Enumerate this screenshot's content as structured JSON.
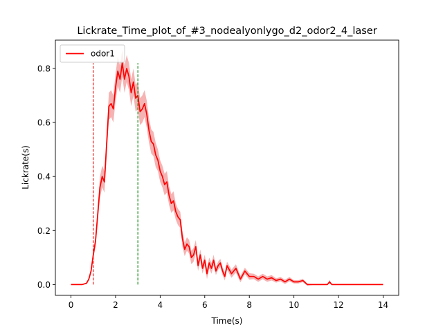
{
  "chart_data": {
    "type": "line",
    "title": "Lickrate_Time_plot_of_#3_nodealyonlygo_d2_odor2_4_laser",
    "xlabel": "Time(s)",
    "ylabel": "Lickrate(s)",
    "xlim": [
      -0.7,
      14.7
    ],
    "ylim": [
      -0.04,
      0.905
    ],
    "xticks": [
      0,
      2,
      4,
      6,
      8,
      10,
      12,
      14
    ],
    "yticks": [
      0.0,
      0.2,
      0.4,
      0.6,
      0.8
    ],
    "xtick_labels": [
      "0",
      "2",
      "4",
      "6",
      "8",
      "10",
      "12",
      "14"
    ],
    "ytick_labels": [
      "0.0",
      "0.2",
      "0.4",
      "0.6",
      "0.8"
    ],
    "grid": false,
    "legend": {
      "placement": "top-left",
      "entries": [
        "odor1"
      ]
    },
    "colors": {
      "line": "#ff0000",
      "band": "#f08080",
      "onset": "#ff0000",
      "offset": "#008000"
    },
    "vlines": [
      {
        "x": 1.0,
        "ymin": 0.0,
        "ymax": 0.82,
        "color": "#ff0000",
        "style": "dashed"
      },
      {
        "x": 3.0,
        "ymin": 0.0,
        "ymax": 0.82,
        "color": "#008000",
        "style": "dashed"
      }
    ],
    "series": [
      {
        "name": "odor1",
        "x": [
          0,
          0.5,
          0.7,
          0.8,
          0.9,
          1.0,
          1.1,
          1.2,
          1.3,
          1.4,
          1.5,
          1.6,
          1.7,
          1.8,
          1.9,
          2.0,
          2.1,
          2.2,
          2.3,
          2.4,
          2.5,
          2.6,
          2.7,
          2.8,
          2.9,
          3.0,
          3.1,
          3.2,
          3.3,
          3.4,
          3.5,
          3.6,
          3.7,
          3.8,
          3.9,
          4.0,
          4.1,
          4.2,
          4.3,
          4.4,
          4.5,
          4.6,
          4.7,
          4.8,
          4.9,
          5.0,
          5.1,
          5.2,
          5.3,
          5.4,
          5.5,
          5.6,
          5.7,
          5.8,
          5.9,
          6.0,
          6.1,
          6.2,
          6.3,
          6.4,
          6.5,
          6.6,
          6.7,
          6.8,
          6.9,
          7.0,
          7.2,
          7.4,
          7.6,
          7.8,
          8.0,
          8.2,
          8.4,
          8.6,
          8.8,
          9.0,
          9.2,
          9.4,
          9.6,
          9.8,
          10.0,
          10.2,
          10.4,
          10.6,
          11.0,
          11.5,
          11.6,
          11.7,
          12.0,
          13.0,
          14.0
        ],
        "y": [
          0.0,
          0.0,
          0.005,
          0.02,
          0.05,
          0.11,
          0.16,
          0.26,
          0.36,
          0.4,
          0.38,
          0.52,
          0.66,
          0.67,
          0.65,
          0.73,
          0.79,
          0.76,
          0.82,
          0.76,
          0.8,
          0.77,
          0.71,
          0.75,
          0.69,
          0.7,
          0.64,
          0.65,
          0.67,
          0.63,
          0.57,
          0.53,
          0.52,
          0.48,
          0.46,
          0.42,
          0.4,
          0.37,
          0.38,
          0.33,
          0.3,
          0.31,
          0.27,
          0.25,
          0.24,
          0.17,
          0.13,
          0.15,
          0.14,
          0.1,
          0.11,
          0.14,
          0.07,
          0.11,
          0.06,
          0.09,
          0.04,
          0.08,
          0.06,
          0.09,
          0.05,
          0.07,
          0.08,
          0.05,
          0.03,
          0.07,
          0.04,
          0.06,
          0.02,
          0.05,
          0.03,
          0.03,
          0.02,
          0.03,
          0.02,
          0.025,
          0.015,
          0.02,
          0.01,
          0.02,
          0.01,
          0.01,
          0.015,
          0.0,
          0.0,
          0.0,
          0.01,
          0.0,
          0.0,
          0.0,
          0.0
        ],
        "band_halfwidth": [
          0.0,
          0.0,
          0.003,
          0.005,
          0.01,
          0.015,
          0.02,
          0.03,
          0.04,
          0.04,
          0.04,
          0.045,
          0.05,
          0.05,
          0.05,
          0.05,
          0.055,
          0.05,
          0.05,
          0.05,
          0.05,
          0.05,
          0.05,
          0.05,
          0.05,
          0.05,
          0.05,
          0.05,
          0.05,
          0.05,
          0.045,
          0.045,
          0.045,
          0.045,
          0.04,
          0.04,
          0.04,
          0.04,
          0.04,
          0.035,
          0.035,
          0.035,
          0.03,
          0.03,
          0.03,
          0.03,
          0.025,
          0.025,
          0.025,
          0.025,
          0.025,
          0.025,
          0.02,
          0.02,
          0.02,
          0.02,
          0.02,
          0.02,
          0.02,
          0.02,
          0.015,
          0.015,
          0.015,
          0.015,
          0.015,
          0.015,
          0.015,
          0.015,
          0.012,
          0.012,
          0.012,
          0.01,
          0.01,
          0.01,
          0.01,
          0.01,
          0.008,
          0.008,
          0.008,
          0.008,
          0.006,
          0.006,
          0.006,
          0.004,
          0.0,
          0.0,
          0.008,
          0.0,
          0.0,
          0.0,
          0.0
        ]
      }
    ]
  }
}
